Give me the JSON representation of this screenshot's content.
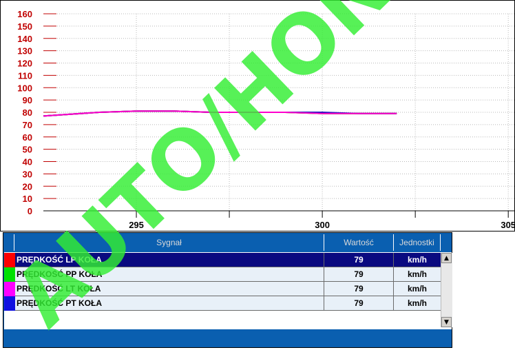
{
  "chart_data": {
    "type": "line",
    "ylim": [
      0,
      160
    ],
    "yticks": [
      0,
      10,
      20,
      30,
      40,
      50,
      60,
      70,
      80,
      90,
      100,
      110,
      120,
      130,
      140,
      150,
      160
    ],
    "xlim": [
      292.5,
      305.2
    ],
    "xticks": [
      295,
      300,
      305
    ],
    "xticks_minor": [
      292.5,
      297.5,
      302.5
    ],
    "grid": true,
    "series": [
      {
        "color": "#ff0000",
        "x": [
          292.5,
          294,
          295,
          296,
          297,
          298,
          299,
          300,
          301,
          302
        ],
        "y": [
          77,
          80,
          81,
          81,
          80,
          80,
          80,
          79,
          79,
          79
        ]
      },
      {
        "color": "#00cc00",
        "x": [
          292.5,
          294,
          295,
          296,
          297,
          298,
          299,
          300,
          301,
          302
        ],
        "y": [
          77,
          80,
          81,
          81,
          80,
          80,
          80,
          79,
          79,
          79
        ]
      },
      {
        "color": "#1010c0",
        "x": [
          292.5,
          294,
          295,
          296,
          297,
          298,
          299,
          300,
          301,
          302
        ],
        "y": [
          77,
          80,
          81,
          81,
          80,
          80,
          80,
          80,
          79,
          79
        ]
      },
      {
        "color": "#ff00cc",
        "x": [
          292.5,
          294,
          295,
          296,
          297,
          298,
          299,
          300,
          301,
          302
        ],
        "y": [
          77,
          80,
          81,
          81,
          80,
          80,
          80,
          79,
          79,
          79
        ]
      }
    ]
  },
  "table": {
    "headers": {
      "signal": "Sygnał",
      "value": "Wartość",
      "units": "Jednostki"
    },
    "rows": [
      {
        "name": "PRĘDKOŚĆ LP KOŁA",
        "value": "79",
        "unit": "km/h",
        "color": "#ff0000"
      },
      {
        "name": "PRĘDKOŚĆ PP KOŁA",
        "value": "79",
        "unit": "km/h",
        "color": "#00e000"
      },
      {
        "name": "PRĘDKOŚĆ LT KOŁA",
        "value": "79",
        "unit": "km/h",
        "color": "#ff00ff"
      },
      {
        "name": "PRĘDKOŚĆ PT KOŁA",
        "value": "79",
        "unit": "km/h",
        "color": "#1010e0"
      }
    ],
    "scroll_up": "▲",
    "scroll_down": "▼"
  },
  "watermark": {
    "text": "AUTO/HONDA",
    "color": "#33ee33"
  }
}
